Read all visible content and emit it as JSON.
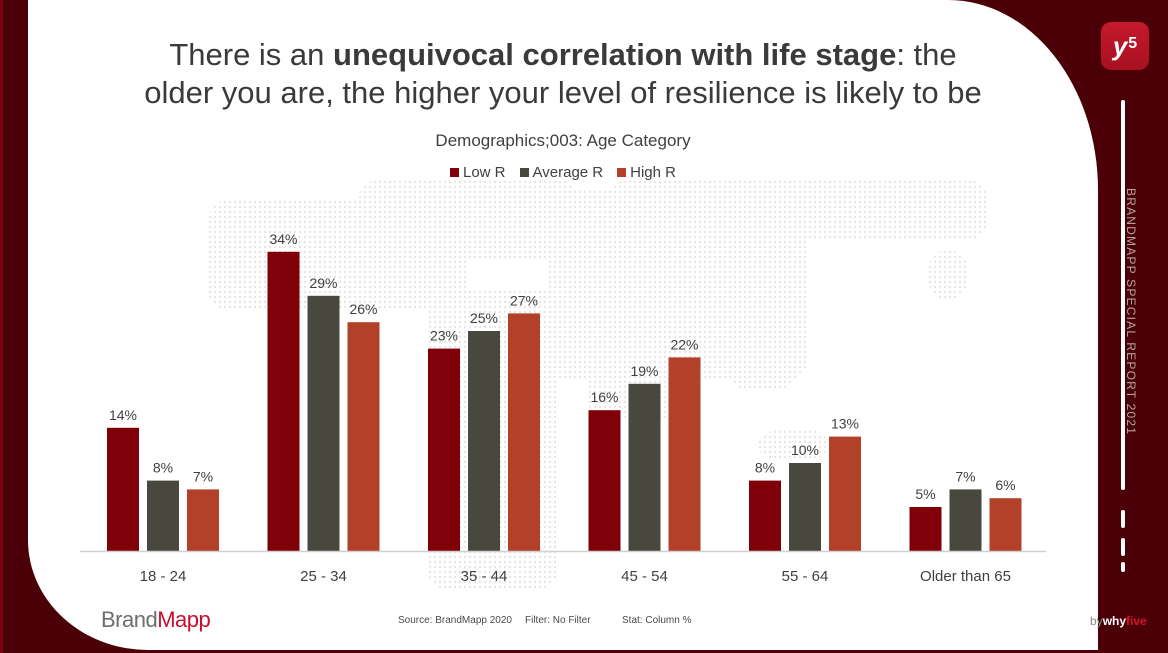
{
  "headline": {
    "part1": "There is an ",
    "bold": "unequivocal correlation with life stage",
    "part2": ": the",
    "line2": "older you are, the higher your level of resilience is likely to be"
  },
  "footer": {
    "brand_prefix": "Brand",
    "brand_accent": "Mapp",
    "source": "Source: BrandMapp 2020",
    "filter": "Filter: No Filter",
    "stat": "Stat: Column %"
  },
  "sidebar": {
    "logo_letter": "y",
    "logo_sup": "5",
    "vertical_text": "BRANDMAPP SPECIAL REPORT 2021",
    "by": "by",
    "why": "why",
    "five": "five"
  },
  "colors": {
    "low": "#7f0008",
    "average": "#48483f",
    "high": "#b34129",
    "frame": "#4a0006",
    "axis": "#d0d0d0"
  },
  "chart_data": {
    "type": "bar",
    "title": "Demographics;003: Age Category",
    "xlabel": "",
    "ylabel": "",
    "ylim": [
      0,
      36
    ],
    "grid": false,
    "legend_position": "top-center",
    "categories": [
      "18 - 24",
      "25 - 34",
      "35 - 44",
      "45 - 54",
      "55 - 64",
      "Older than 65"
    ],
    "series": [
      {
        "name": "Low R",
        "values": [
          14,
          34,
          23,
          16,
          8,
          5
        ],
        "labels": [
          "14%",
          "34%",
          "23%",
          "16%",
          "8%",
          "5%"
        ]
      },
      {
        "name": "Average R",
        "values": [
          8,
          29,
          25,
          19,
          10,
          7
        ],
        "labels": [
          "8%",
          "29%",
          "25%",
          "19%",
          "10%",
          "7%"
        ]
      },
      {
        "name": "High R",
        "values": [
          7,
          26,
          27,
          22,
          13,
          6
        ],
        "labels": [
          "7%",
          "26%",
          "27%",
          "22%",
          "13%",
          "6%"
        ]
      }
    ]
  }
}
